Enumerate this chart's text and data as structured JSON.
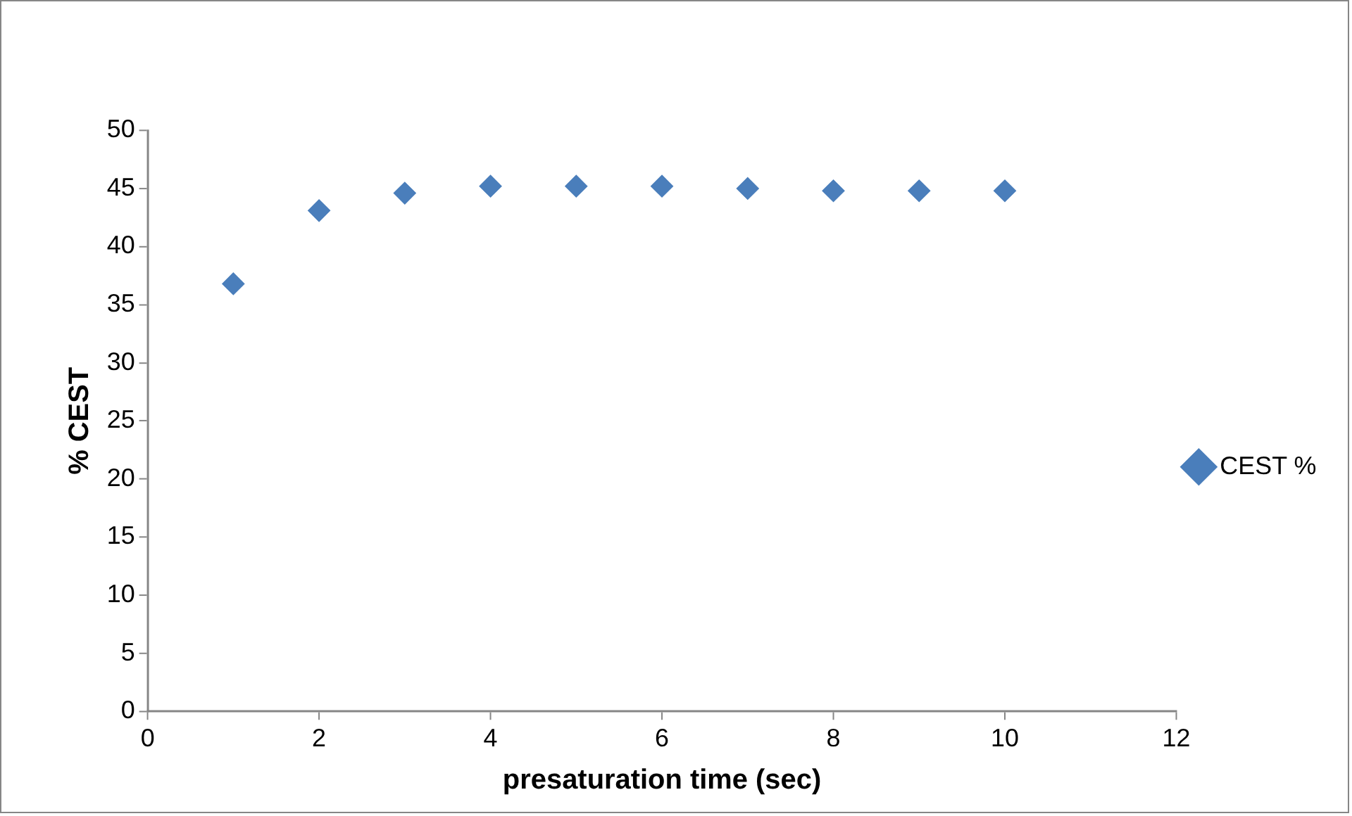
{
  "chart_data": {
    "type": "scatter",
    "xlabel": "presaturation time (sec)",
    "ylabel": "% CEST",
    "x": [
      1,
      2,
      3,
      4,
      5,
      6,
      7,
      8,
      9,
      10
    ],
    "series": [
      {
        "name": "CEST %",
        "color": "#4a7ebb",
        "values": [
          36.8,
          43.1,
          44.6,
          45.2,
          45.2,
          45.2,
          45.0,
          44.8,
          44.8,
          44.8
        ]
      }
    ],
    "xlim": [
      0,
      12
    ],
    "xticks": [
      0,
      2,
      4,
      6,
      8,
      10,
      12
    ],
    "ylim": [
      0,
      50
    ],
    "yticks": [
      0,
      5,
      10,
      15,
      20,
      25,
      30,
      35,
      40,
      45,
      50
    ],
    "grid": false,
    "legend": "right",
    "marker": "diamond"
  }
}
